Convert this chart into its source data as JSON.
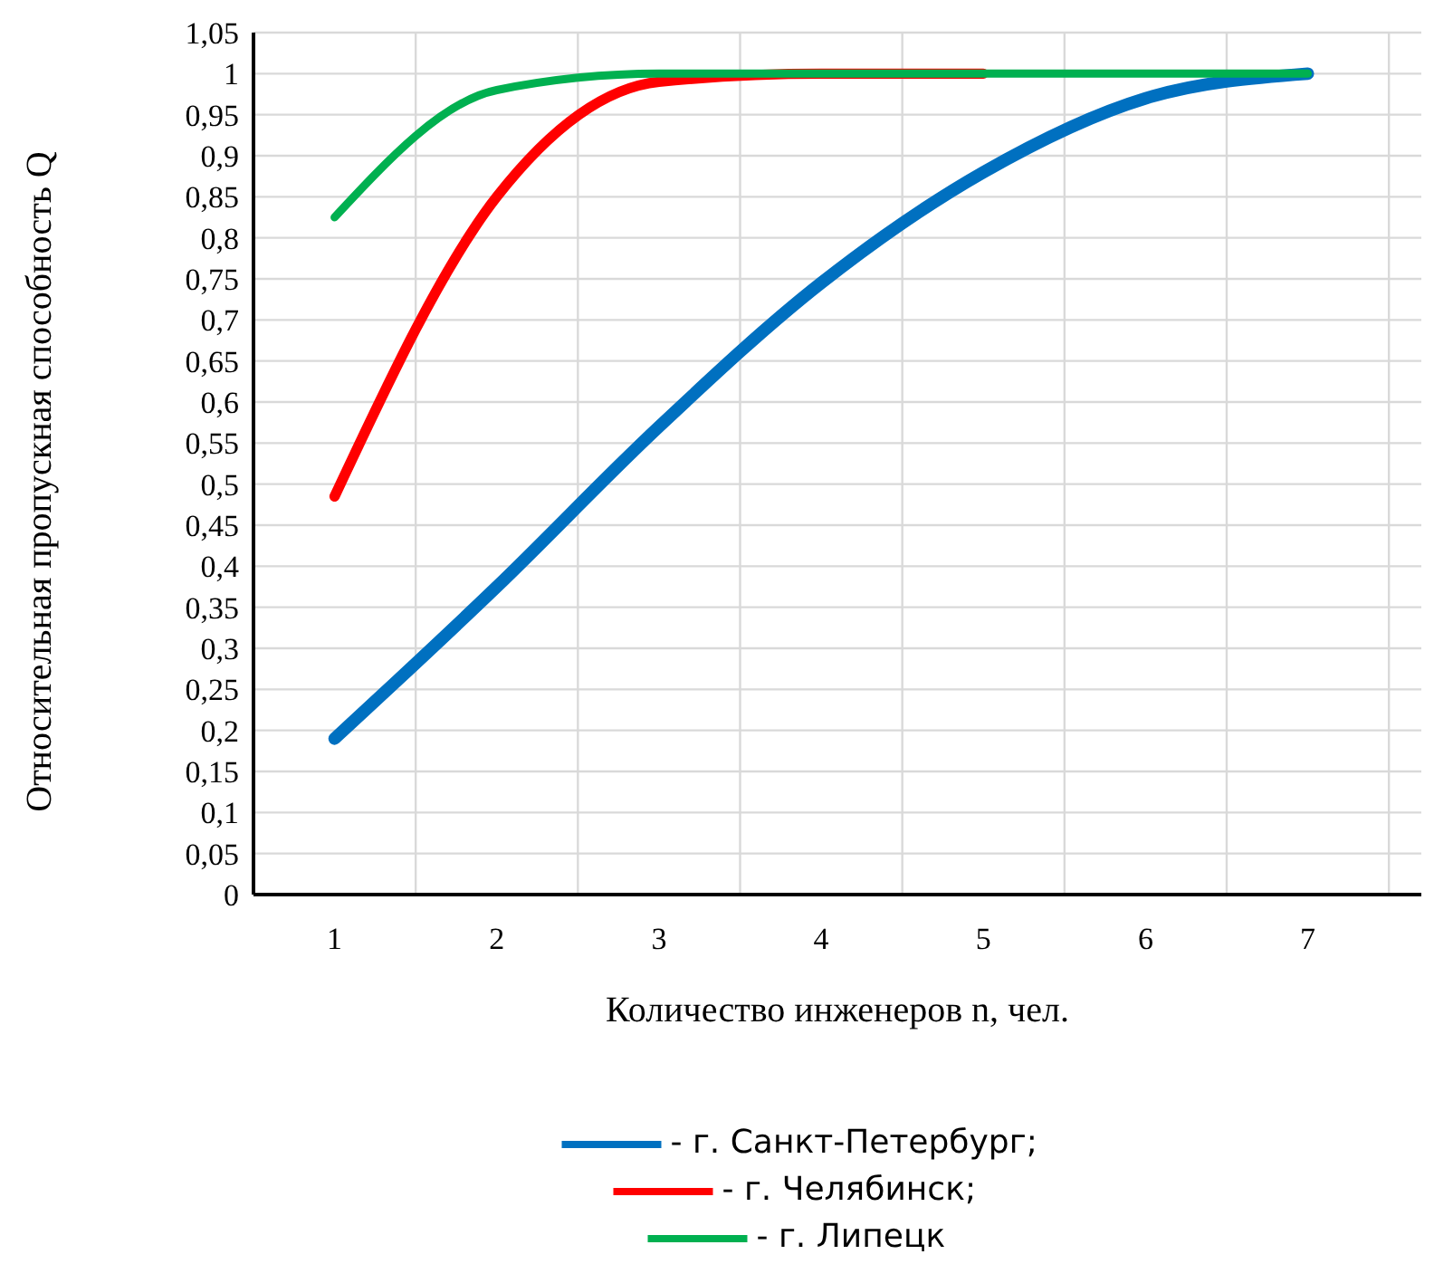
{
  "chart_data": {
    "type": "line",
    "xlabel": "Количество инженеров n, чел.",
    "ylabel": "Относительная пропускная способность Q",
    "categories": [
      "1",
      "2",
      "3",
      "4",
      "5",
      "6",
      "7"
    ],
    "series": [
      {
        "name": "- г. Санкт-Петербург;",
        "color": "#0070c0",
        "values": [
          0.19,
          0.375,
          0.57,
          0.745,
          0.88,
          0.97,
          1
        ]
      },
      {
        "name": "- г. Челябинск;",
        "color": "#ff0000",
        "values": [
          0.485,
          0.85,
          0.99,
          1,
          1,
          null,
          null
        ]
      },
      {
        "name": "- г. Липецк",
        "color": "#00b050",
        "values": [
          0.825,
          0.98,
          1,
          1,
          1,
          1,
          1
        ]
      }
    ],
    "ylim": [
      0,
      1.05
    ],
    "yticks": [
      {
        "value": 0,
        "label": "0"
      },
      {
        "value": 0.05,
        "label": "0,05"
      },
      {
        "value": 0.1,
        "label": "0,1"
      },
      {
        "value": 0.15,
        "label": "0,15"
      },
      {
        "value": 0.2,
        "label": "0,2"
      },
      {
        "value": 0.25,
        "label": "0,25"
      },
      {
        "value": 0.3,
        "label": "0,3"
      },
      {
        "value": 0.35,
        "label": "0,35"
      },
      {
        "value": 0.4,
        "label": "0,4"
      },
      {
        "value": 0.45,
        "label": "0,45"
      },
      {
        "value": 0.5,
        "label": "0,5"
      },
      {
        "value": 0.55,
        "label": "0,55"
      },
      {
        "value": 0.6,
        "label": "0,6"
      },
      {
        "value": 0.65,
        "label": "0,65"
      },
      {
        "value": 0.7,
        "label": "0,7"
      },
      {
        "value": 0.75,
        "label": "0,75"
      },
      {
        "value": 0.8,
        "label": "0,8"
      },
      {
        "value": 0.85,
        "label": "0,85"
      },
      {
        "value": 0.9,
        "label": "0,9"
      },
      {
        "value": 0.95,
        "label": "0,95"
      },
      {
        "value": 1,
        "label": "1"
      },
      {
        "value": 1.05,
        "label": "1,05"
      }
    ],
    "grid": true,
    "legend": "bottom",
    "marker": "none",
    "line_style": "solid"
  }
}
